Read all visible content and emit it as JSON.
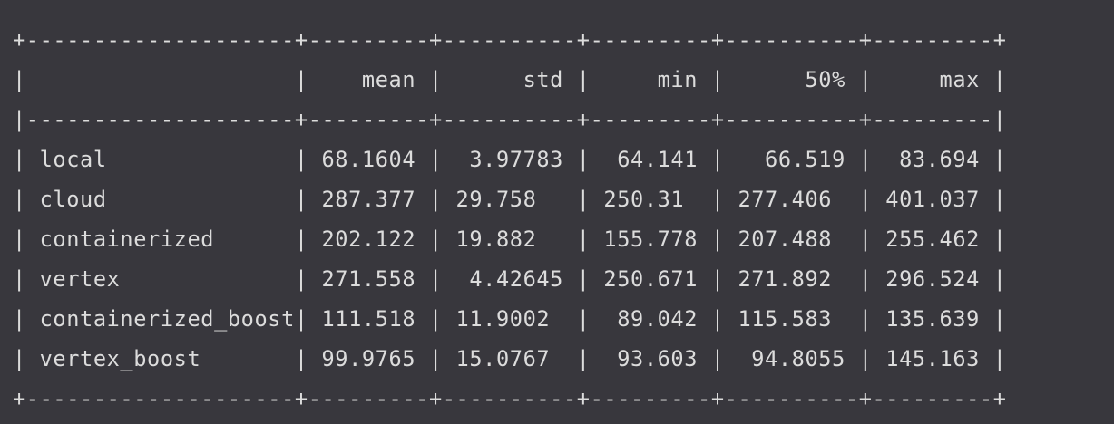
{
  "table": {
    "lines": [
      "+--------------------+---------+----------+---------+----------+---------+",
      "|                    |    mean |      std |     min |      50% |     max |",
      "|--------------------+---------+----------+---------+----------+---------|",
      "| local              | 68.1604 |  3.97783 |  64.141 |   66.519 |  83.694 |",
      "| cloud              | 287.377 | 29.758   | 250.31  | 277.406  | 401.037 |",
      "| containerized      | 202.122 | 19.882   | 155.778 | 207.488  | 255.462 |",
      "| vertex             | 271.558 |  4.42645 | 250.671 | 271.892  | 296.524 |",
      "| containerized_boost| 111.518 | 11.9002  |  89.042 | 115.583  | 135.639 |",
      "| vertex_boost       | 99.9765 | 15.0767  |  93.603 |  94.8055 | 145.163 |",
      "+--------------------+---------+----------+---------+----------+---------+"
    ]
  }
}
